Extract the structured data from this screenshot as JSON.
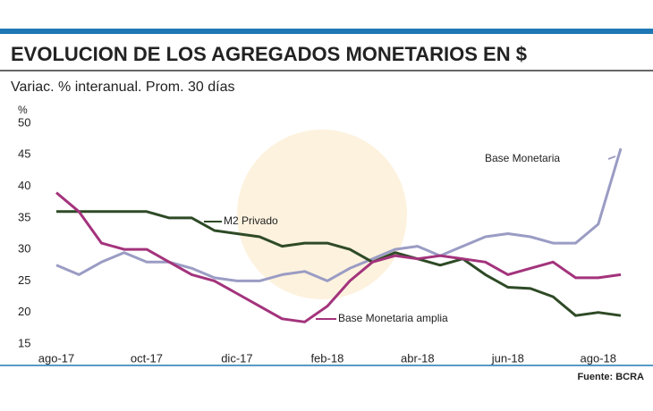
{
  "chart_data": {
    "type": "line",
    "title": "EVOLUCION DE LOS AGREGADOS MONETARIOS EN $",
    "subtitle": "Variac. % interanual. Prom. 30 días",
    "y_unit": "%",
    "source": "Fuente: BCRA",
    "categories": [
      "ago-17",
      null,
      null,
      null,
      "oct-17",
      null,
      null,
      null,
      "dic-17",
      null,
      null,
      null,
      "feb-18",
      null,
      null,
      null,
      "abr-18",
      null,
      null,
      null,
      "jun-18",
      null,
      null,
      null,
      "ago-18",
      null
    ],
    "ylim": [
      15,
      50
    ],
    "yticks": [
      15,
      20,
      25,
      30,
      35,
      40,
      45,
      50
    ],
    "series": [
      {
        "name": "Base Monetaria",
        "color": "#9a9cc4",
        "values": [
          27.5,
          26,
          28,
          29.5,
          28,
          28,
          27,
          25.5,
          25,
          25,
          26,
          26.5,
          25,
          27,
          28.5,
          30,
          30.5,
          29,
          30.5,
          32,
          32.5,
          32,
          31,
          31,
          34,
          46
        ]
      },
      {
        "name": "M2 Privado",
        "color": "#2e4a26",
        "values": [
          36,
          36,
          36,
          36,
          36,
          35,
          35,
          33,
          32.5,
          32,
          30.5,
          31,
          31,
          30,
          28,
          29.5,
          28.5,
          27.5,
          28.5,
          26,
          24,
          23.8,
          22.5,
          19.5,
          20,
          19.5
        ]
      },
      {
        "name": "Base Monetaria amplia",
        "color": "#a3337c",
        "values": [
          39,
          36,
          31,
          30,
          30,
          28,
          26,
          25,
          23,
          21,
          19,
          18.5,
          21,
          25,
          28,
          29,
          28.5,
          29,
          28.5,
          28,
          26,
          27,
          28,
          25.5,
          25.5,
          26
        ]
      }
    ]
  }
}
